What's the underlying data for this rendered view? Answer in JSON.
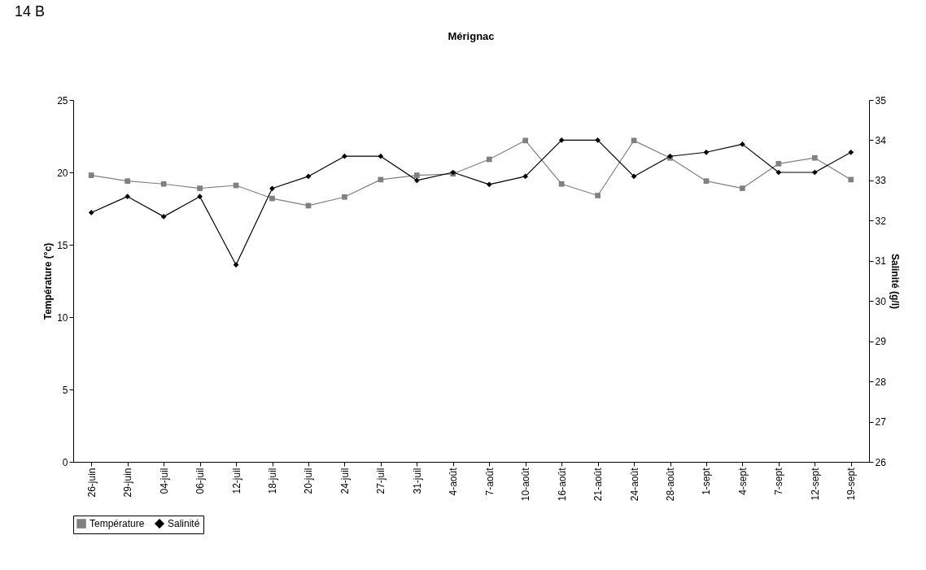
{
  "chart_data": {
    "type": "line",
    "title": "Mérignac",
    "ylabel": "Température (°c)",
    "y2label": "Salinité (g/l)",
    "annotations": [
      "14 B"
    ],
    "categories": [
      "26-juin",
      "29-juin",
      "04-juil",
      "06-juil",
      "12-juil",
      "18-juil",
      "20-juil",
      "24-juil",
      "27-juil",
      "31-juil",
      "4-août",
      "7-août",
      "10-août",
      "16-août",
      "21-août",
      "24-août",
      "28-août",
      "1-sept",
      "4-sept",
      "7-sept",
      "12-sept",
      "19-sept"
    ],
    "series": [
      {
        "name": "Température",
        "color": "#808080",
        "marker": "square",
        "values": [
          19.8,
          19.4,
          19.2,
          18.9,
          19.1,
          18.2,
          17.7,
          18.3,
          19.5,
          19.8,
          19.9,
          20.9,
          22.2,
          19.2,
          18.4,
          22.2,
          21.0,
          19.4,
          18.9,
          20.6,
          21.0,
          19.5
        ]
      },
      {
        "name": "Salinité",
        "color": "#000000",
        "marker": "diamond",
        "axis": "y2",
        "values": [
          32.2,
          32.6,
          32.1,
          32.6,
          30.9,
          32.8,
          33.1,
          33.6,
          33.6,
          33.0,
          33.2,
          32.9,
          33.1,
          34.0,
          34.0,
          33.1,
          33.6,
          33.7,
          33.9,
          33.2,
          33.2,
          33.7
        ]
      }
    ],
    "ylim": [
      0,
      25
    ],
    "yticks": [
      0,
      5,
      10,
      15,
      20,
      25
    ],
    "y2lim": [
      26,
      35
    ],
    "y2ticks": [
      26,
      27,
      28,
      29,
      30,
      31,
      32,
      33,
      34,
      35
    ],
    "grid": false,
    "legend": "bottom",
    "line_style": "solid"
  }
}
